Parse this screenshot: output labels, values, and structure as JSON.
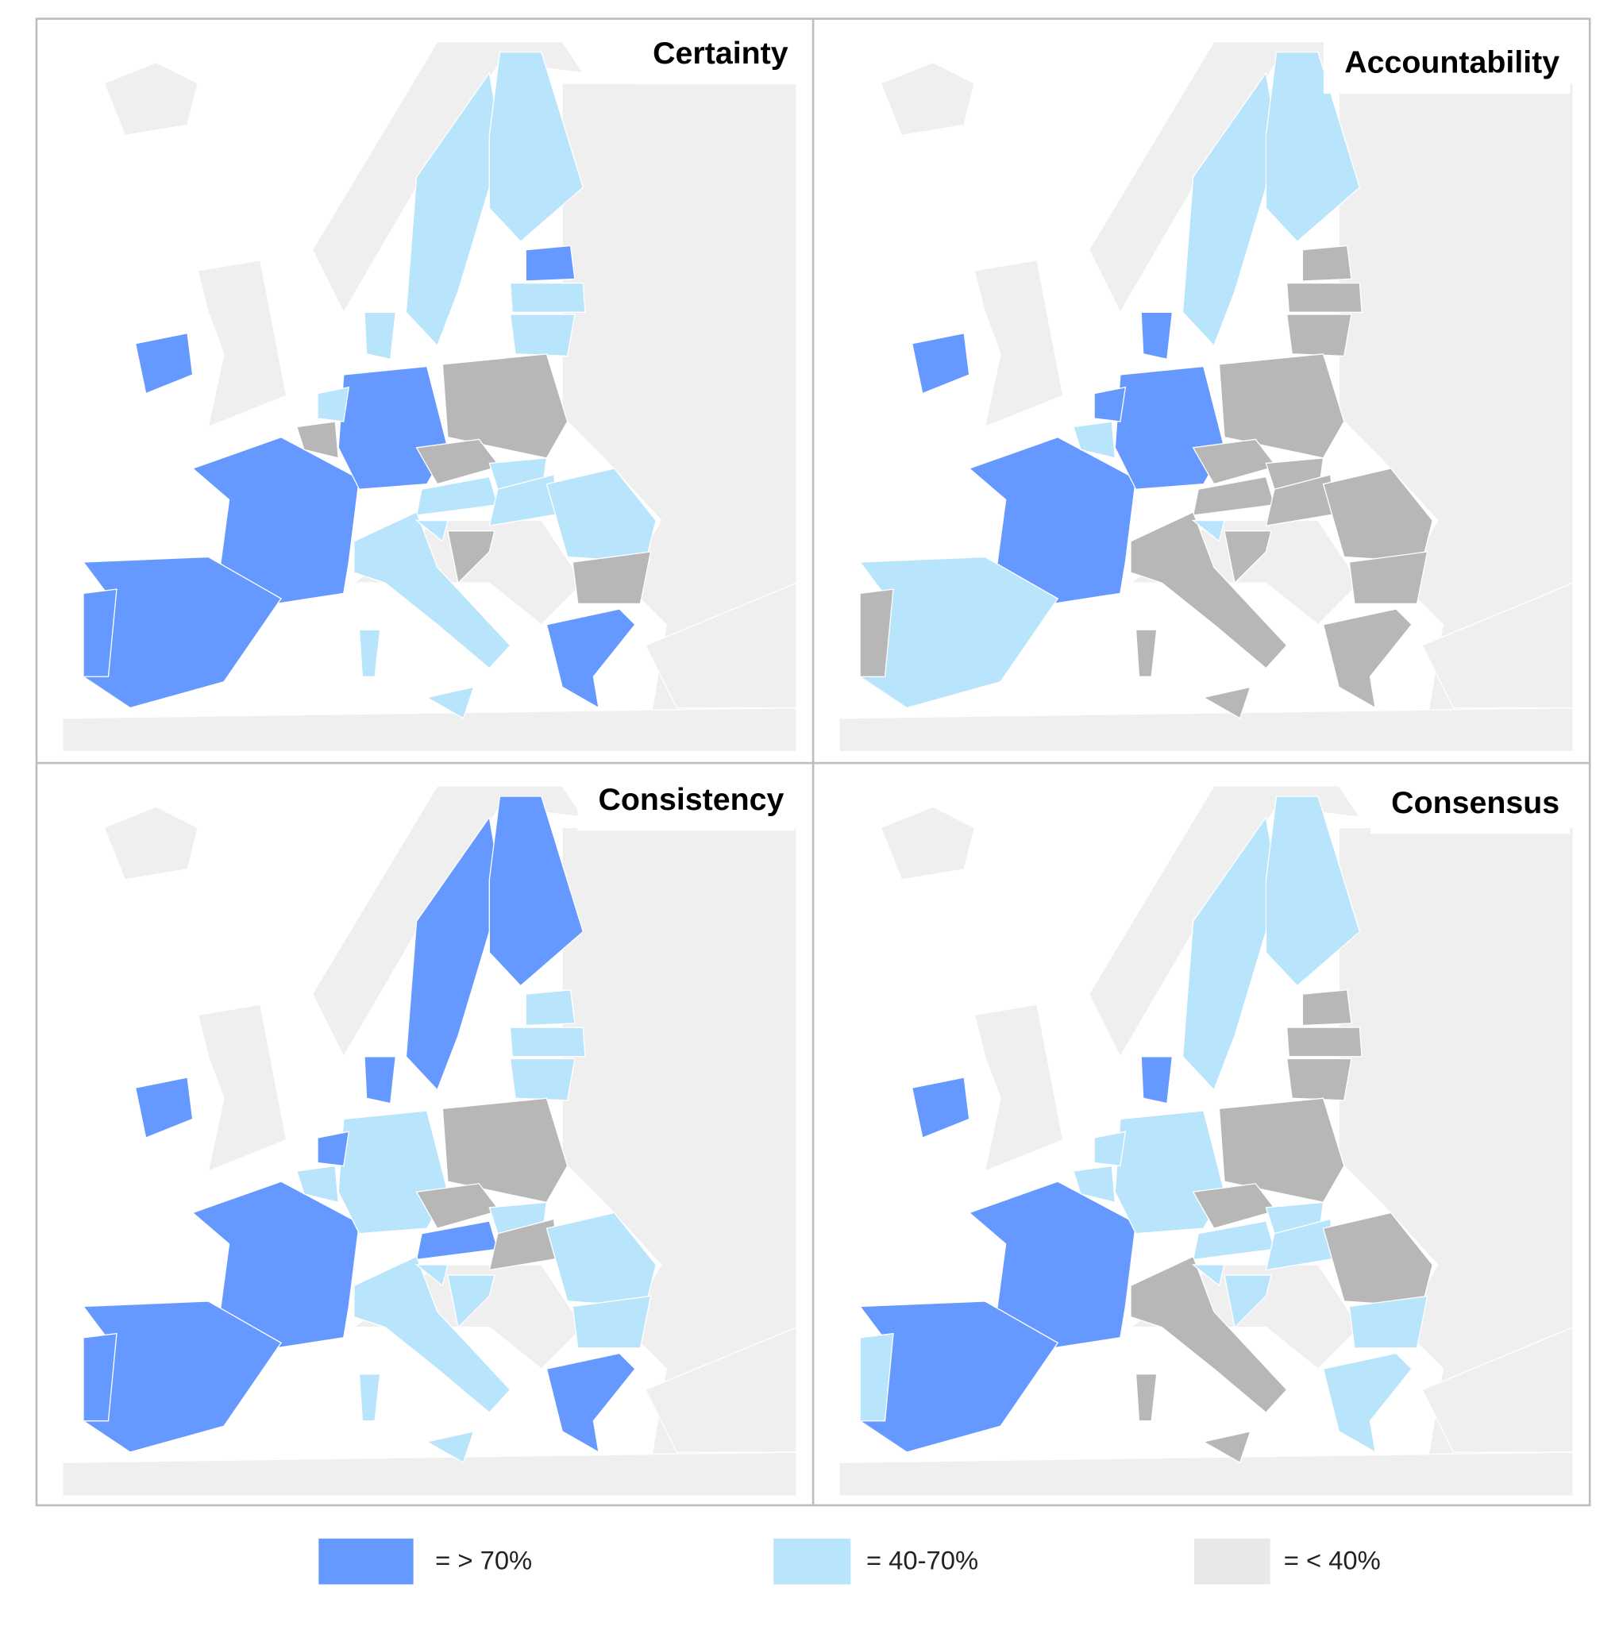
{
  "panels": [
    {
      "title": "Certainty"
    },
    {
      "title": "Accountability"
    },
    {
      "title": "Consistency"
    },
    {
      "title": "Consensus"
    }
  ],
  "legend": [
    {
      "label": "= > 70%",
      "color": "#6699ff"
    },
    {
      "label": "= 40-70%",
      "color": "#b8e4fc"
    },
    {
      "label": "= < 40%",
      "color": "#e8e8e8"
    }
  ]
}
